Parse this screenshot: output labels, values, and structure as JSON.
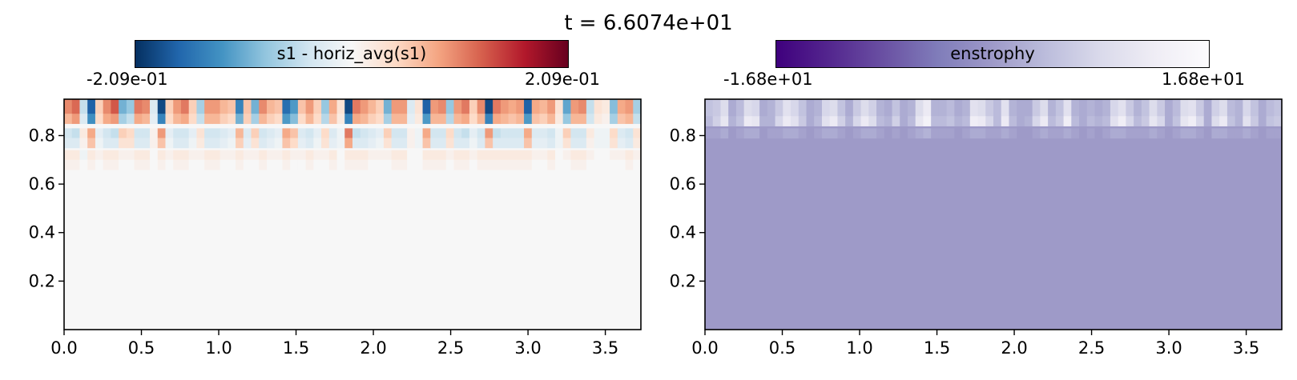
{
  "figure": {
    "suptitle": "t = 6.6074e+01"
  },
  "chart_data": [
    {
      "type": "heatmap",
      "colorbar_label": "s1 - horiz_avg(s1)",
      "colormap": "RdBu_r",
      "colormap_stops": [
        "#053061",
        "#2166ac",
        "#4393c3",
        "#92c5de",
        "#d1e5f0",
        "#f7f7f7",
        "#fddbc7",
        "#f4a582",
        "#d6604d",
        "#b2182b",
        "#67001f"
      ],
      "vmin_label": "-2.09e-01",
      "vmax_label": "2.09e-01",
      "vmin": -0.209,
      "vmax": 0.209,
      "xlim": [
        0.0,
        3.73
      ],
      "ylim": [
        0.0,
        0.95
      ],
      "xticks": [
        0.0,
        0.5,
        1.0,
        1.5,
        2.0,
        2.5,
        3.0,
        3.5
      ],
      "xtick_labels": [
        "0.0",
        "0.5",
        "1.0",
        "1.5",
        "2.0",
        "2.5",
        "3.0",
        "3.5"
      ],
      "yticks": [
        0.2,
        0.4,
        0.6,
        0.8
      ],
      "ytick_labels": [
        "0.2",
        "0.4",
        "0.6",
        "0.8"
      ],
      "grid": false,
      "pattern": "alternating cells along top rows (y > 0.7); rows near y≈0.9 strongest, y≈0.8 sign-inverted; near zero elsewhere",
      "rows": [
        {
          "y": 0.9,
          "values": [
            0.1,
            0.12,
            -0.05,
            -0.17,
            0.05,
            0.1,
            0.13,
            -0.1,
            -0.08,
            0.11,
            0.1,
            -0.03,
            -0.19,
            0.05,
            0.09,
            0.11,
            0.05,
            -0.07,
            0.09,
            0.09,
            0.07,
            0.06,
            -0.14,
            0.06,
            -0.1,
            0.1,
            0.07,
            0.06,
            -0.16,
            -0.12,
            0.06,
            0.09,
            0.05,
            -0.08,
            0.08,
            0.03,
            -0.19,
            0.11,
            0.09,
            0.07,
            0.05,
            -0.1,
            0.09,
            0.09,
            -0.03,
            0.03,
            -0.17,
            0.09,
            0.1,
            -0.08,
            0.09,
            0.11,
            0.05,
            0.1,
            -0.19,
            0.11,
            0.09,
            0.08,
            0.09,
            -0.17,
            0.08,
            0.07,
            0.09,
            0.03,
            -0.11,
            0.09,
            0.1,
            -0.05,
            0.03,
            0.02,
            -0.09,
            0.08,
            0.09,
            -0.07
          ]
        },
        {
          "y": 0.87,
          "values": [
            0.07,
            0.09,
            -0.03,
            -0.13,
            0.04,
            0.08,
            0.09,
            -0.07,
            -0.05,
            0.08,
            0.07,
            -0.02,
            -0.14,
            0.04,
            0.07,
            0.08,
            0.04,
            -0.05,
            0.07,
            0.07,
            0.05,
            0.04,
            -0.1,
            0.05,
            -0.07,
            0.07,
            0.05,
            0.04,
            -0.12,
            -0.09,
            0.04,
            0.07,
            0.04,
            -0.06,
            0.06,
            0.02,
            -0.14,
            0.08,
            0.07,
            0.05,
            0.04,
            -0.07,
            0.07,
            0.07,
            -0.02,
            0.02,
            -0.12,
            0.07,
            0.07,
            -0.06,
            0.07,
            0.08,
            0.04,
            0.07,
            -0.14,
            0.08,
            0.07,
            0.06,
            0.07,
            -0.12,
            0.06,
            0.05,
            0.07,
            0.02,
            -0.08,
            0.07,
            0.07,
            -0.04,
            0.02,
            0.01,
            -0.07,
            0.06,
            0.07,
            -0.05
          ]
        },
        {
          "y": 0.81,
          "values": [
            -0.04,
            -0.05,
            0.02,
            0.08,
            -0.02,
            -0.04,
            -0.05,
            0.05,
            0.04,
            -0.04,
            -0.04,
            0.01,
            0.09,
            -0.02,
            -0.04,
            -0.04,
            -0.02,
            0.03,
            -0.04,
            -0.04,
            -0.03,
            -0.02,
            0.07,
            -0.03,
            0.05,
            -0.04,
            -0.03,
            -0.02,
            0.08,
            0.06,
            -0.03,
            -0.04,
            -0.02,
            0.04,
            -0.03,
            -0.01,
            0.11,
            -0.05,
            -0.04,
            -0.03,
            -0.02,
            0.05,
            -0.04,
            -0.04,
            0.01,
            -0.01,
            0.08,
            -0.04,
            -0.04,
            0.04,
            -0.04,
            -0.05,
            -0.02,
            -0.04,
            0.09,
            -0.05,
            -0.04,
            -0.04,
            -0.04,
            0.08,
            -0.03,
            -0.03,
            -0.04,
            -0.01,
            0.05,
            -0.04,
            -0.04,
            0.02,
            -0.01,
            -0.01,
            0.04,
            -0.03,
            -0.04,
            0.03
          ]
        },
        {
          "y": 0.77,
          "values": [
            -0.03,
            -0.03,
            0.01,
            0.06,
            -0.01,
            -0.03,
            -0.03,
            0.03,
            0.03,
            -0.03,
            -0.03,
            0.01,
            0.06,
            -0.01,
            -0.03,
            -0.03,
            -0.01,
            0.02,
            -0.03,
            -0.03,
            -0.02,
            -0.01,
            0.05,
            -0.02,
            0.03,
            -0.03,
            -0.02,
            -0.01,
            0.06,
            0.04,
            -0.02,
            -0.03,
            -0.01,
            0.03,
            -0.02,
            -0.01,
            0.08,
            -0.03,
            -0.03,
            -0.02,
            -0.01,
            0.03,
            -0.03,
            -0.03,
            0.01,
            -0.01,
            0.06,
            -0.03,
            -0.03,
            0.03,
            -0.03,
            -0.03,
            -0.01,
            -0.03,
            0.06,
            -0.03,
            -0.03,
            -0.03,
            -0.03,
            0.06,
            -0.02,
            -0.02,
            -0.03,
            -0.01,
            0.03,
            -0.03,
            -0.03,
            0.01,
            -0.01,
            -0.01,
            0.03,
            -0.02,
            -0.03,
            0.02
          ]
        },
        {
          "y": 0.72,
          "values": [
            0.02,
            0.02,
            -0.01,
            0.02,
            0.01,
            0.02,
            0.02,
            0.01,
            0.01,
            0.02,
            0.02,
            0.0,
            0.02,
            0.01,
            0.02,
            0.02,
            0.01,
            0.01,
            0.02,
            0.02,
            0.01,
            0.01,
            0.02,
            0.01,
            0.01,
            0.02,
            0.01,
            0.01,
            0.02,
            0.01,
            0.01,
            0.02,
            0.01,
            0.01,
            0.02,
            0.0,
            0.02,
            0.02,
            0.02,
            0.01,
            0.01,
            0.01,
            0.02,
            0.02,
            0.0,
            0.0,
            0.02,
            0.02,
            0.02,
            0.01,
            0.02,
            0.02,
            0.01,
            0.02,
            0.02,
            0.02,
            0.02,
            0.02,
            0.02,
            0.02,
            0.01,
            0.01,
            0.02,
            0.0,
            0.01,
            0.02,
            0.02,
            0.01,
            0.0,
            0.0,
            0.01,
            0.01,
            0.02,
            0.01
          ]
        },
        {
          "y": 0.68,
          "values": [
            0.01,
            0.01,
            0.0,
            0.01,
            0.0,
            0.01,
            0.01,
            0.0,
            0.0,
            0.01,
            0.01,
            0.0,
            0.01,
            0.0,
            0.01,
            0.01,
            0.0,
            0.0,
            0.01,
            0.01,
            0.0,
            0.0,
            0.01,
            0.0,
            0.0,
            0.01,
            0.0,
            0.0,
            0.01,
            0.0,
            0.0,
            0.01,
            0.0,
            0.0,
            0.01,
            0.0,
            0.01,
            0.01,
            0.01,
            0.0,
            0.0,
            0.0,
            0.01,
            0.01,
            0.0,
            0.0,
            0.01,
            0.01,
            0.01,
            0.0,
            0.01,
            0.01,
            0.0,
            0.01,
            0.01,
            0.01,
            0.01,
            0.01,
            0.01,
            0.01,
            0.0,
            0.0,
            0.01,
            0.0,
            0.0,
            0.01,
            0.01,
            0.0,
            0.0,
            0.0,
            0.0,
            0.0,
            0.01,
            0.0
          ]
        }
      ],
      "background_value": 0.0
    },
    {
      "type": "heatmap",
      "colorbar_label": "enstrophy",
      "colormap": "Purples_r",
      "colormap_stops": [
        "#3f007d",
        "#54278f",
        "#6a51a3",
        "#807dba",
        "#9e9ac8",
        "#bcbddc",
        "#dadaeb",
        "#efedf5",
        "#fcfbfd"
      ],
      "vmin_label": "-1.68e+01",
      "vmax_label": "1.68e+01",
      "vmin": -16.8,
      "vmax": 16.8,
      "xlim": [
        0.0,
        3.73
      ],
      "ylim": [
        0.0,
        0.95
      ],
      "xticks": [
        0.0,
        0.5,
        1.0,
        1.5,
        2.0,
        2.5,
        3.0,
        3.5
      ],
      "xtick_labels": [
        "0.0",
        "0.5",
        "1.0",
        "1.5",
        "2.0",
        "2.5",
        "3.0",
        "3.5"
      ],
      "yticks": [
        0.2,
        0.4,
        0.6,
        0.8
      ],
      "ytick_labels": [
        "0.2",
        "0.4",
        "0.6",
        "0.8"
      ],
      "grid": false,
      "pattern": "uniform field near 0 except bright patches along top rows (y > 0.8)",
      "rows": [
        {
          "y": 0.9,
          "values": [
            5,
            6,
            9,
            2,
            4,
            9,
            8,
            2,
            3,
            6,
            10,
            8,
            5,
            2,
            3,
            8,
            9,
            5,
            2,
            6,
            9,
            7,
            3,
            2,
            5,
            2,
            3,
            9,
            12,
            3,
            3,
            4,
            2,
            3,
            10,
            9,
            6,
            4,
            10,
            3,
            2,
            2,
            6,
            9,
            3,
            5,
            10,
            3,
            2,
            3,
            2,
            3,
            8,
            10,
            6,
            3,
            5,
            9,
            6,
            2,
            4,
            9,
            10,
            6,
            2,
            7,
            9,
            4,
            3,
            8,
            5,
            2,
            4,
            5
          ]
        },
        {
          "y": 0.86,
          "values": [
            4,
            7,
            11,
            3,
            5,
            12,
            11,
            3,
            3,
            8,
            12,
            10,
            6,
            2,
            4,
            10,
            12,
            7,
            3,
            8,
            12,
            9,
            4,
            3,
            7,
            2,
            4,
            11,
            14,
            4,
            4,
            5,
            3,
            4,
            13,
            12,
            8,
            4,
            12,
            4,
            2,
            3,
            8,
            12,
            4,
            6,
            13,
            4,
            2,
            4,
            3,
            4,
            10,
            13,
            8,
            4,
            6,
            11,
            8,
            2,
            5,
            11,
            13,
            8,
            2,
            9,
            12,
            5,
            3,
            10,
            6,
            2,
            5,
            6
          ]
        },
        {
          "y": 0.81,
          "values": [
            1,
            1,
            2,
            0,
            1,
            2,
            2,
            0,
            1,
            1,
            2,
            2,
            1,
            0,
            1,
            2,
            2,
            1,
            0,
            1,
            2,
            2,
            1,
            0,
            1,
            0,
            1,
            2,
            3,
            1,
            1,
            1,
            0,
            1,
            2,
            2,
            1,
            1,
            2,
            1,
            0,
            0,
            1,
            2,
            1,
            1,
            2,
            1,
            0,
            1,
            0,
            1,
            2,
            2,
            1,
            1,
            1,
            2,
            1,
            0,
            1,
            2,
            2,
            1,
            0,
            2,
            2,
            1,
            1,
            2,
            1,
            0,
            1,
            1
          ]
        }
      ],
      "background_value": 0.0
    }
  ]
}
